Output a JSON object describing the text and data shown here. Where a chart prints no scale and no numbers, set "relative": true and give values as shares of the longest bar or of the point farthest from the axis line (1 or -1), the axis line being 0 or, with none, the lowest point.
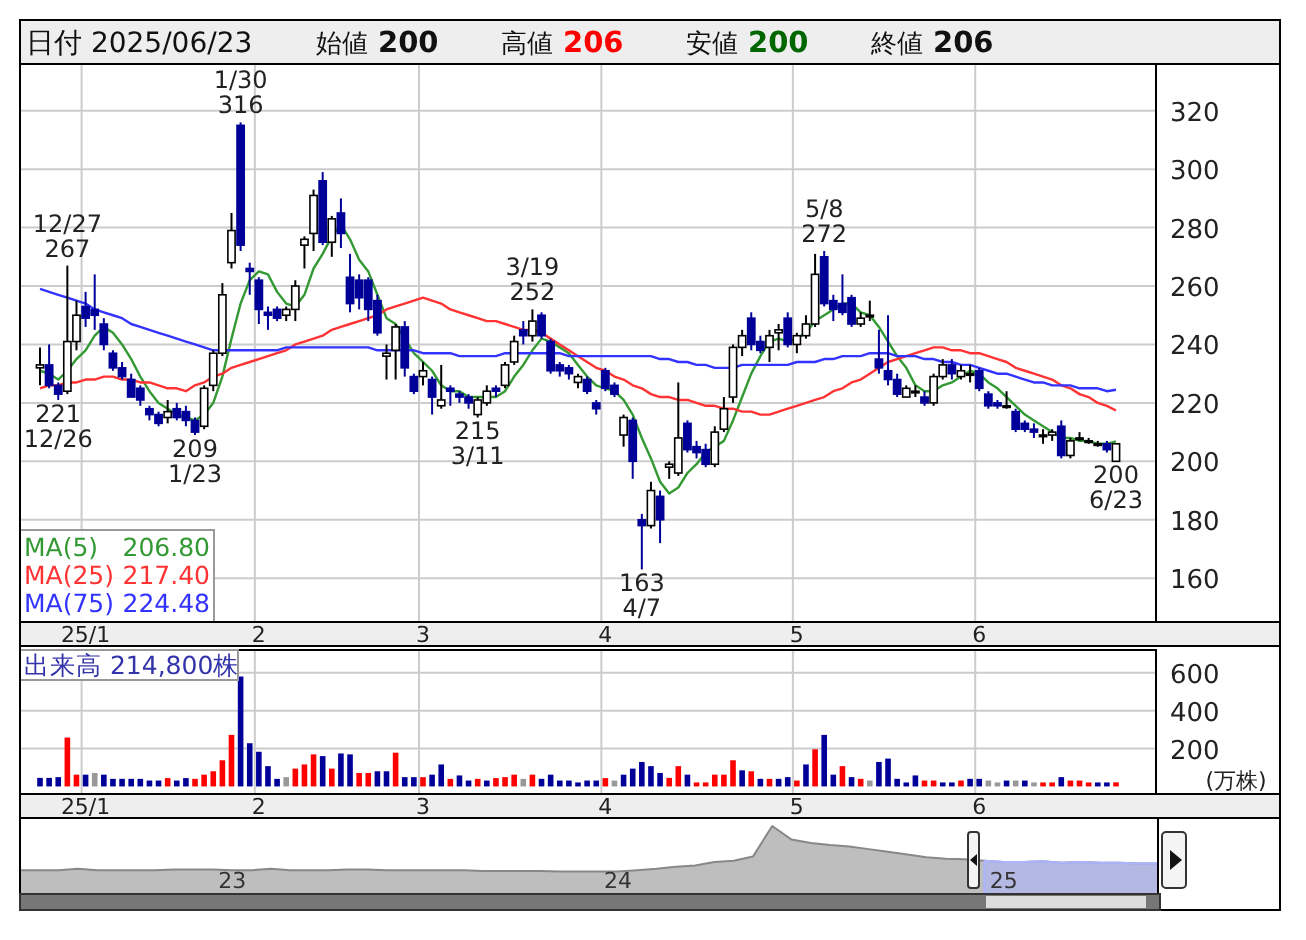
{
  "chart_data": [
    {
      "type": "candlestick",
      "title": "日付 2025/06/23",
      "subtitle": "始値 200 高値 206 安値 200 終値 206",
      "colors": [
        "#ffffff",
        "#000099",
        "#000099",
        "#ffffff",
        "#ffffff",
        "#000099",
        "#000099",
        "#000099",
        "#000099",
        "#000099",
        "#000099",
        "#000099",
        "#000099",
        "#000099",
        "#ffffff",
        "#000099",
        "#000099",
        "#000099",
        "#ffffff",
        "#ffffff",
        "#ffffff",
        "#ffffff",
        "#000099",
        "#000099",
        "#000099",
        "#000099",
        "#000099",
        "#ffffff",
        "#ffffff",
        "#ffffff",
        "#ffffff",
        "#000099",
        "#ffffff",
        "#000099",
        "#000099",
        "#000099",
        "#000099",
        "#000099",
        "#ffffff",
        "#ffffff",
        "#000099",
        "#000099",
        "#ffffff",
        "#000099",
        "#ffffff",
        "#000099",
        "#000099",
        "#000099",
        "#ffffff",
        "#ffffff",
        "#000099",
        "#ffffff",
        "#ffffff",
        "#000099",
        "#ffffff",
        "#000099",
        "#000099",
        "#000099",
        "#000099",
        "#ffffff",
        "#000099",
        "#000099",
        "#000099",
        "#000099",
        "#ffffff",
        "#000099",
        "#000099",
        "#ffffff",
        "#000099",
        "#ffffff",
        "#ffffff",
        "#000099",
        "#000099",
        "#000099",
        "#ffffff",
        "#ffffff",
        "#ffffff",
        "#ffffff",
        "#000099",
        "#000099",
        "#ffffff",
        "#ffffff",
        "#000099",
        "#ffffff",
        "#ffffff",
        "#ffffff",
        "#000099",
        "#000099",
        "#000099",
        "#000099",
        "#ffffff",
        "#ffffff",
        "#000099",
        "#000099",
        "#000099",
        "#ffffff",
        "#ffffff",
        "#000099",
        "#ffffff",
        "#ffffff",
        "#000099",
        "#ffffff",
        "#ffffff",
        "#000099",
        "#000099",
        "#000099",
        "#ffffff",
        "#000099",
        "#000099",
        "#000099",
        "#ffffff",
        "#ffffff",
        "#000099",
        "#ffffff",
        "#ffffff",
        "#ffffff",
        "#ffffff",
        "#000099",
        "#ffffff"
      ],
      "categories": [
        null,
        null,
        null,
        null,
        null,
        "25/1",
        null,
        null,
        null,
        null,
        null,
        null,
        null,
        null,
        null,
        null,
        null,
        null,
        null,
        null,
        null,
        null,
        null,
        null,
        "2",
        null,
        null,
        null,
        null,
        null,
        null,
        null,
        null,
        null,
        null,
        null,
        null,
        null,
        null,
        null,
        null,
        null,
        "3",
        null,
        null,
        null,
        null,
        null,
        null,
        null,
        null,
        null,
        null,
        null,
        null,
        null,
        null,
        null,
        null,
        null,
        null,
        null,
        "4",
        null,
        null,
        null,
        null,
        null,
        null,
        null,
        null,
        null,
        null,
        null,
        null,
        null,
        null,
        null,
        null,
        null,
        null,
        null,
        null,
        "5",
        null,
        null,
        null,
        null,
        null,
        null,
        null,
        null,
        null,
        null,
        null,
        null,
        null,
        null,
        null,
        null,
        null,
        null,
        null,
        "6",
        null,
        null,
        null,
        null,
        null,
        null,
        null,
        null,
        null,
        null,
        null,
        null,
        null,
        null,
        null
      ],
      "ohlc": [
        [
          232,
          239,
          226,
          233
        ],
        [
          233,
          240,
          225,
          226
        ],
        [
          226,
          227,
          221,
          223
        ],
        [
          224,
          267,
          223,
          241
        ],
        [
          241,
          255,
          238,
          250
        ],
        [
          253,
          258,
          246,
          249
        ],
        [
          252,
          264,
          245,
          250
        ],
        [
          247,
          249,
          238,
          240
        ],
        [
          237,
          238,
          231,
          232
        ],
        [
          232,
          234,
          228,
          229
        ],
        [
          228,
          230,
          222,
          222
        ],
        [
          225,
          226,
          219,
          221
        ],
        [
          218,
          219,
          214,
          216
        ],
        [
          216,
          217,
          212,
          213
        ],
        [
          215,
          221,
          213,
          217
        ],
        [
          218,
          220,
          214,
          215
        ],
        [
          217,
          219,
          212,
          214
        ],
        [
          214,
          215,
          209,
          210
        ],
        [
          212,
          226,
          211,
          225
        ],
        [
          226,
          238,
          224,
          237
        ],
        [
          237,
          261,
          236,
          257
        ],
        [
          268,
          285,
          266,
          279
        ],
        [
          315,
          316,
          272,
          274
        ],
        [
          266,
          268,
          257,
          265
        ],
        [
          262,
          263,
          247,
          252
        ],
        [
          251,
          253,
          245,
          250
        ],
        [
          252,
          253,
          248,
          249
        ],
        [
          250,
          253,
          248,
          252
        ],
        [
          252,
          262,
          248,
          260
        ],
        [
          274,
          277,
          266,
          276
        ],
        [
          278,
          293,
          272,
          291
        ],
        [
          296,
          299,
          274,
          275
        ],
        [
          275,
          284,
          270,
          283
        ],
        [
          285,
          290,
          273,
          278
        ],
        [
          263,
          271,
          251,
          254
        ],
        [
          262,
          264,
          252,
          256
        ],
        [
          262,
          263,
          248,
          252
        ],
        [
          255,
          257,
          243,
          244
        ],
        [
          236,
          240,
          228,
          237
        ],
        [
          238,
          247,
          228,
          246
        ],
        [
          246,
          248,
          229,
          232
        ],
        [
          229,
          230,
          223,
          224
        ],
        [
          229,
          234,
          226,
          231
        ],
        [
          228,
          229,
          216,
          222
        ],
        [
          219,
          233,
          218,
          221
        ],
        [
          225,
          226,
          219,
          224
        ],
        [
          223,
          224,
          220,
          222
        ],
        [
          222,
          223,
          218,
          220
        ],
        [
          216,
          222,
          215,
          221
        ],
        [
          220,
          226,
          219,
          224
        ],
        [
          225,
          226,
          222,
          224
        ],
        [
          226,
          234,
          225,
          233
        ],
        [
          234,
          243,
          233,
          241
        ],
        [
          245,
          248,
          240,
          243
        ],
        [
          243,
          252,
          241,
          248
        ],
        [
          250,
          251,
          242,
          243
        ],
        [
          241,
          242,
          230,
          231
        ],
        [
          233,
          234,
          229,
          231
        ],
        [
          232,
          233,
          228,
          230
        ],
        [
          227,
          230,
          225,
          229
        ],
        [
          228,
          229,
          223,
          224
        ],
        [
          220,
          221,
          216,
          218
        ],
        [
          231,
          232,
          224,
          225
        ],
        [
          226,
          227,
          222,
          223
        ],
        [
          209,
          216,
          205,
          215
        ],
        [
          214,
          215,
          194,
          200
        ],
        [
          180,
          182,
          163,
          178
        ],
        [
          178,
          193,
          177,
          190
        ],
        [
          188,
          190,
          172,
          180
        ],
        [
          198,
          200,
          194,
          199
        ],
        [
          196,
          227,
          195,
          208
        ],
        [
          213,
          214,
          203,
          204
        ],
        [
          205,
          207,
          201,
          203
        ],
        [
          204,
          206,
          198,
          199
        ],
        [
          199,
          212,
          198,
          210
        ],
        [
          211,
          222,
          210,
          218
        ],
        [
          222,
          240,
          220,
          239
        ],
        [
          239,
          245,
          236,
          243
        ],
        [
          249,
          251,
          238,
          240
        ],
        [
          241,
          243,
          237,
          238
        ],
        [
          239,
          245,
          234,
          243
        ],
        [
          244,
          247,
          238,
          245
        ],
        [
          249,
          251,
          239,
          240
        ],
        [
          240,
          244,
          237,
          243
        ],
        [
          243,
          250,
          242,
          247
        ],
        [
          247,
          271,
          246,
          264
        ],
        [
          270,
          272,
          253,
          254
        ],
        [
          255,
          257,
          248,
          252
        ],
        [
          254,
          264,
          250,
          251
        ],
        [
          256,
          257,
          246,
          247
        ],
        [
          247,
          251,
          246,
          249
        ],
        [
          250,
          255,
          248,
          250
        ],
        [
          235,
          245,
          230,
          232
        ],
        [
          231,
          250,
          226,
          228
        ],
        [
          228,
          230,
          222,
          223
        ],
        [
          222,
          226,
          222,
          225
        ],
        [
          224,
          226,
          222,
          224
        ],
        [
          222,
          224,
          219,
          220
        ],
        [
          220,
          230,
          219,
          229
        ],
        [
          229,
          235,
          228,
          233
        ],
        [
          233,
          235,
          228,
          230
        ],
        [
          229,
          233,
          228,
          231
        ],
        [
          230,
          233,
          227,
          230
        ],
        [
          231,
          232,
          224,
          225
        ],
        [
          223,
          224,
          218,
          219
        ],
        [
          220,
          221,
          218,
          219
        ],
        [
          219,
          224,
          218,
          219
        ],
        [
          217,
          218,
          210,
          211
        ],
        [
          213,
          214,
          210,
          211
        ],
        [
          211,
          213,
          208,
          210
        ],
        [
          209,
          211,
          206,
          209
        ],
        [
          209,
          211,
          207,
          210
        ],
        [
          212,
          214,
          201,
          202
        ],
        [
          202,
          208,
          201,
          207
        ],
        [
          208,
          210,
          207,
          208
        ],
        [
          207,
          208,
          206,
          207
        ],
        [
          206,
          207,
          205,
          206
        ],
        [
          206,
          207,
          203,
          204
        ],
        [
          200,
          206,
          200,
          206
        ]
      ],
      "series": [
        {
          "name": "MA(5)",
          "type": "line",
          "color": "#339933",
          "values": [
            231,
            230,
            228,
            231,
            235,
            238,
            243,
            246,
            244,
            240,
            235,
            229,
            224,
            220,
            218,
            216,
            215,
            214,
            216,
            220,
            229,
            242,
            254,
            262,
            265,
            264,
            258,
            254,
            253,
            257,
            266,
            271,
            277,
            281,
            276,
            269,
            265,
            257,
            249,
            247,
            242,
            237,
            234,
            231,
            226,
            224,
            224,
            222,
            222,
            222,
            222,
            224,
            229,
            233,
            238,
            242,
            241,
            239,
            237,
            233,
            229,
            226,
            225,
            224,
            221,
            216,
            208,
            201,
            193,
            189,
            191,
            196,
            199,
            203,
            205,
            207,
            214,
            222,
            230,
            236,
            241,
            242,
            241,
            242,
            244,
            248,
            250,
            252,
            254,
            254,
            251,
            250,
            246,
            241,
            236,
            232,
            226,
            224,
            224,
            226,
            227,
            229,
            231,
            230,
            227,
            225,
            222,
            219,
            216,
            214,
            212,
            210,
            208,
            208,
            207,
            207,
            206,
            206,
            206.8
          ]
        },
        {
          "name": "MA(25)",
          "type": "line",
          "color": "#ff3333",
          "values": [
            225,
            226,
            226,
            227,
            227,
            228,
            228,
            229,
            229,
            228,
            228,
            227,
            227,
            226,
            225,
            225,
            224,
            226,
            227,
            229,
            230,
            232,
            233,
            234,
            235,
            236,
            237,
            238,
            240,
            241,
            242,
            243,
            245,
            246,
            247,
            248,
            249,
            250,
            252,
            253,
            254,
            255,
            256,
            255,
            254,
            252,
            251,
            250,
            249,
            248,
            248,
            247,
            246,
            245,
            245,
            244,
            242,
            240,
            238,
            236,
            234,
            232,
            231,
            229,
            228,
            226,
            225,
            223,
            222,
            222,
            221,
            221,
            220,
            219,
            219,
            218,
            218,
            217,
            217,
            216,
            216,
            217,
            218,
            219,
            220,
            221,
            222,
            224,
            225,
            227,
            228,
            230,
            232,
            234,
            235,
            236,
            237,
            238,
            239,
            239,
            238,
            238,
            237,
            237,
            236,
            235,
            234,
            232,
            231,
            230,
            229,
            228,
            226,
            225,
            223,
            222,
            220,
            219,
            217.4
          ]
        },
        {
          "name": "MA(75)",
          "type": "line",
          "color": "#3333ff",
          "values": [
            259,
            258,
            257,
            256,
            255,
            254,
            252,
            251,
            250,
            249,
            247,
            246,
            245,
            244,
            243,
            242,
            241,
            240,
            239,
            238,
            238,
            238,
            238,
            238,
            238,
            238,
            238,
            239,
            239,
            239,
            239,
            239,
            239,
            239,
            239,
            239,
            239,
            238,
            238,
            238,
            238,
            238,
            237,
            237,
            237,
            237,
            236,
            236,
            236,
            236,
            236,
            237,
            237,
            237,
            237,
            237,
            237,
            237,
            236,
            236,
            236,
            236,
            236,
            236,
            236,
            236,
            236,
            236,
            235,
            235,
            234,
            234,
            233,
            233,
            232,
            232,
            232,
            233,
            233,
            233,
            233,
            233,
            233,
            234,
            234,
            234,
            235,
            235,
            236,
            236,
            236,
            237,
            237,
            237,
            236,
            236,
            236,
            235,
            235,
            234,
            234,
            233,
            233,
            232,
            231,
            230,
            230,
            229,
            228,
            227,
            227,
            226,
            226,
            226,
            225,
            225,
            225,
            224,
            224.48
          ]
        }
      ],
      "annotations": [
        {
          "text": "12/27\n267",
          "y": 267
        },
        {
          "text": "221\n12/26",
          "y": 221
        },
        {
          "text": "209\n1/23",
          "y": 209
        },
        {
          "text": "1/30\n316",
          "y": 316
        },
        {
          "text": "215\n3/11",
          "y": 215
        },
        {
          "text": "3/19\n252",
          "y": 252
        },
        {
          "text": "163\n4/7",
          "y": 163
        },
        {
          "text": "5/8\n272",
          "y": 272
        },
        {
          "text": "200\n6/23",
          "y": 200
        },
        "206.80",
        "217.40",
        "224.48"
      ],
      "ylim": [
        145,
        336
      ],
      "yticks": [
        160,
        180,
        200,
        220,
        240,
        260,
        280,
        300,
        320
      ],
      "grid": true,
      "legend": "bottom left"
    },
    {
      "type": "bar",
      "title": "出来高 214,800株",
      "ylabel": "(万株)",
      "categories": [
        null,
        null,
        null,
        null,
        null,
        "25/1",
        null,
        null,
        null,
        null,
        null,
        null,
        null,
        null,
        null,
        null,
        null,
        null,
        null,
        null,
        null,
        null,
        null,
        null,
        "2",
        null,
        null,
        null,
        null,
        null,
        null,
        null,
        null,
        null,
        null,
        null,
        null,
        null,
        null,
        null,
        null,
        null,
        "3",
        null,
        null,
        null,
        null,
        null,
        null,
        null,
        null,
        null,
        null,
        null,
        null,
        null,
        null,
        null,
        null,
        null,
        null,
        null,
        "4",
        null,
        null,
        null,
        null,
        null,
        null,
        null,
        null,
        null,
        null,
        null,
        null,
        null,
        null,
        null,
        null,
        null,
        null,
        null,
        null,
        "5",
        null,
        null,
        null,
        null,
        null,
        null,
        null,
        null,
        null,
        null,
        null,
        null,
        null,
        null,
        null,
        null,
        null,
        null,
        null,
        "6",
        null,
        null,
        null,
        null,
        null,
        null,
        null,
        null,
        null,
        null,
        null,
        null,
        null,
        null,
        null
      ],
      "values": [
        45,
        45,
        49,
        258,
        62,
        62,
        71,
        62,
        40,
        40,
        40,
        40,
        31,
        31,
        44,
        31,
        44,
        40,
        62,
        80,
        138,
        272,
        580,
        228,
        183,
        107,
        40,
        49,
        94,
        116,
        169,
        160,
        94,
        174,
        169,
        71,
        71,
        80,
        80,
        178,
        49,
        49,
        49,
        62,
        116,
        40,
        58,
        31,
        40,
        31,
        44,
        49,
        62,
        40,
        62,
        40,
        62,
        31,
        31,
        21,
        31,
        31,
        44,
        31,
        62,
        94,
        129,
        107,
        71,
        45,
        107,
        62,
        21,
        21,
        62,
        62,
        138,
        85,
        80,
        40,
        40,
        40,
        49,
        31,
        116,
        196,
        272,
        62,
        107,
        49,
        40,
        31,
        129,
        147,
        40,
        21,
        58,
        31,
        31,
        21,
        21,
        31,
        40,
        40,
        31,
        21,
        31,
        31,
        31,
        21,
        21,
        21,
        49,
        31,
        31,
        21,
        21,
        21,
        21.48
      ],
      "colors": [
        "#000099",
        "#000099",
        "#000099",
        "#ff0000",
        "#ff0000",
        "#000099",
        "#999999",
        "#000099",
        "#000099",
        "#000099",
        "#000099",
        "#000099",
        "#000099",
        "#000099",
        "#ff0000",
        "#000099",
        "#000099",
        "#ff0000",
        "#ff0000",
        "#ff0000",
        "#ff0000",
        "#ff0000",
        "#000099",
        "#000099",
        "#000099",
        "#000099",
        "#000099",
        "#999999",
        "#ff0000",
        "#ff0000",
        "#ff0000",
        "#000099",
        "#ff0000",
        "#000099",
        "#000099",
        "#ff0000",
        "#ff0000",
        "#000099",
        "#000099",
        "#ff0000",
        "#000099",
        "#000099",
        "#ff0000",
        "#000099",
        "#000099",
        "#ff0000",
        "#000099",
        "#000099",
        "#ff0000",
        "#000099",
        "#ff0000",
        "#ff0000",
        "#ff0000",
        "#999999",
        "#ff0000",
        "#000099",
        "#000099",
        "#000099",
        "#000099",
        "#000099",
        "#000099",
        "#000099",
        "#ff0000",
        "#999999",
        "#000099",
        "#000099",
        "#000099",
        "#000099",
        "#000099",
        "#ff0000",
        "#ff0000",
        "#000099",
        "#ff0000",
        "#ff0000",
        "#ff0000",
        "#ff0000",
        "#ff0000",
        "#000099",
        "#ff0000",
        "#000099",
        "#ff0000",
        "#000099",
        "#000099",
        "#ff0000",
        "#000099",
        "#ff0000",
        "#000099",
        "#000099",
        "#ff0000",
        "#000099",
        "#ff0000",
        "#999999",
        "#000099",
        "#000099",
        "#000099",
        "#000099",
        "#000099",
        "#ff0000",
        "#ff0000",
        "#000099",
        "#000099",
        "#ff0000",
        "#000099",
        "#000099",
        "#999999",
        "#999999",
        "#000099",
        "#999999",
        "#000099",
        "#999999",
        "#ff0000",
        "#ff0000",
        "#000099",
        "#ff0000",
        "#ff0000",
        "#ff0000",
        "#000099",
        "#000099",
        "#ff0000"
      ],
      "ylim": [
        -40,
        720
      ],
      "yticks": [
        200,
        400,
        600
      ],
      "grid": true
    },
    {
      "type": "area",
      "relative": true,
      "tick_labels": "x",
      "categories": [
        null,
        null,
        null,
        null,
        null,
        null,
        null,
        null,
        null,
        null,
        null,
        "23",
        null,
        null,
        null,
        null,
        null,
        null,
        null,
        null,
        null,
        null,
        null,
        null,
        null,
        null,
        null,
        null,
        null,
        null,
        null,
        "24",
        null,
        null,
        null,
        null,
        null,
        null,
        null,
        null,
        null,
        null,
        null,
        null,
        null,
        null,
        null,
        null,
        null,
        null,
        null,
        "25",
        null,
        null,
        null,
        null,
        null,
        null,
        null,
        null
      ],
      "series": [
        {
          "color": "#888888",
          "values": [
            0.35,
            0.35,
            0.35,
            0.37,
            0.35,
            0.35,
            0.35,
            0.35,
            0.36,
            0.36,
            0.36,
            0.35,
            0.35,
            0.37,
            0.35,
            0.35,
            0.35,
            0.36,
            0.36,
            0.35,
            0.35,
            0.35,
            0.35,
            0.35,
            0.34,
            0.34,
            0.34,
            0.34,
            0.33,
            0.33,
            0.33,
            0.33,
            0.35,
            0.37,
            0.4,
            0.42,
            0.47,
            0.49,
            0.55,
            1.0,
            0.8,
            0.75,
            0.72,
            0.7,
            0.66,
            0.62,
            0.58,
            0.54,
            0.52,
            0.51,
            0.49,
            0.47,
            0.47,
            0.48,
            0.46,
            0.47,
            0.46,
            0.46,
            0.45,
            0.45
          ]
        },
        {
          "color": "#aab4ff",
          "values": [
            null,
            null,
            null,
            null,
            null,
            null,
            null,
            null,
            null,
            null,
            null,
            null,
            null,
            null,
            null,
            null,
            null,
            null,
            null,
            null,
            null,
            null,
            null,
            null,
            null,
            null,
            null,
            null,
            null,
            null,
            null,
            null,
            null,
            null,
            null,
            null,
            null,
            null,
            null,
            null,
            null,
            null,
            null,
            null,
            null,
            null,
            null,
            null,
            null,
            null,
            0.49,
            0.47,
            0.47,
            0.48,
            0.46,
            0.47,
            0.46,
            0.46,
            0.45,
            0.45
          ]
        }
      ]
    }
  ]
}
